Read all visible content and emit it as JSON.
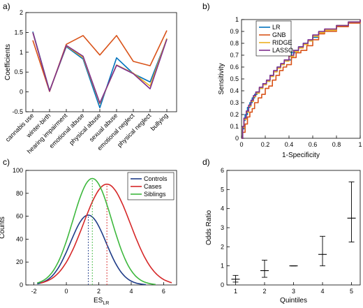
{
  "panel_labels": [
    "a)",
    "b)",
    "c)",
    "d)"
  ],
  "chart_data": [
    {
      "type": "line",
      "panel": "a)",
      "ylabel": "Coefficients",
      "xlabel": "",
      "categories": [
        "cannabis use",
        "winter-birth",
        "hearing impairment",
        "emotional abuse",
        "physical abuse",
        "sexual abuse",
        "emotional neglect",
        "physical neglect",
        "bullying"
      ],
      "ylim": [
        -0.5,
        2
      ],
      "yticks": [
        -0.5,
        0,
        0.5,
        1,
        1.5,
        2
      ],
      "legend_position": "none",
      "series": [
        {
          "name": "",
          "color": "#0072BD",
          "values": [
            1.52,
            0.03,
            1.14,
            0.83,
            -0.4,
            0.86,
            0.46,
            0.25,
            1.33
          ]
        },
        {
          "name": "",
          "color": "#D95319",
          "values": [
            1.3,
            0.01,
            1.2,
            1.42,
            0.93,
            1.42,
            0.77,
            0.66,
            1.55
          ]
        },
        {
          "name": "",
          "color": "#EDB120",
          "values": [
            1.5,
            0.02,
            1.16,
            0.87,
            -0.3,
            0.68,
            0.47,
            0.15,
            1.35
          ]
        },
        {
          "name": "",
          "color": "#7E2F8E",
          "values": [
            1.5,
            0.02,
            1.17,
            0.9,
            -0.28,
            0.67,
            0.46,
            0.08,
            1.33
          ]
        }
      ]
    },
    {
      "type": "line",
      "panel": "b)",
      "xlabel": "1-Specificity",
      "ylabel": "Sensitivity",
      "xlim": [
        0,
        1
      ],
      "ylim": [
        0,
        1
      ],
      "xticks": [
        0,
        0.2,
        0.4,
        0.6,
        0.8,
        1
      ],
      "yticks": [
        0,
        0.1,
        0.2,
        0.3,
        0.4,
        0.5,
        0.6,
        0.7,
        0.8,
        0.9,
        1
      ],
      "legend_position": "top-left",
      "series": [
        {
          "name": "LR",
          "color": "#0072BD",
          "x": [
            0,
            0.01,
            0.02,
            0.03,
            0.05,
            0.07,
            0.09,
            0.11,
            0.13,
            0.15,
            0.18,
            0.21,
            0.24,
            0.27,
            0.3,
            0.33,
            0.36,
            0.39,
            0.42,
            0.45,
            0.48,
            0.52,
            0.56,
            0.6,
            0.65,
            0.7,
            0.8,
            0.9,
            1
          ],
          "y": [
            0,
            0.08,
            0.15,
            0.2,
            0.26,
            0.3,
            0.34,
            0.37,
            0.39,
            0.42,
            0.46,
            0.48,
            0.53,
            0.56,
            0.6,
            0.62,
            0.65,
            0.66,
            0.72,
            0.74,
            0.77,
            0.8,
            0.82,
            0.85,
            0.89,
            0.91,
            0.95,
            0.98,
            1
          ]
        },
        {
          "name": "GNB",
          "color": "#D95319",
          "x": [
            0,
            0.01,
            0.03,
            0.05,
            0.07,
            0.09,
            0.11,
            0.14,
            0.17,
            0.2,
            0.23,
            0.26,
            0.29,
            0.32,
            0.35,
            0.38,
            0.42,
            0.46,
            0.5,
            0.55,
            0.6,
            0.65,
            0.7,
            0.8,
            0.9,
            1
          ],
          "y": [
            0,
            0.05,
            0.12,
            0.18,
            0.22,
            0.25,
            0.3,
            0.34,
            0.37,
            0.42,
            0.44,
            0.49,
            0.53,
            0.57,
            0.6,
            0.62,
            0.68,
            0.72,
            0.74,
            0.78,
            0.83,
            0.88,
            0.9,
            0.94,
            0.97,
            1
          ]
        },
        {
          "name": "RIDGE",
          "color": "#EDB120",
          "x": [
            0,
            0.01,
            0.02,
            0.04,
            0.06,
            0.08,
            0.1,
            0.12,
            0.15,
            0.18,
            0.21,
            0.24,
            0.27,
            0.3,
            0.33,
            0.36,
            0.4,
            0.44,
            0.48,
            0.52,
            0.56,
            0.6,
            0.65,
            0.7,
            0.8,
            0.9,
            1
          ],
          "y": [
            0,
            0.09,
            0.16,
            0.22,
            0.27,
            0.31,
            0.35,
            0.38,
            0.42,
            0.45,
            0.48,
            0.52,
            0.56,
            0.59,
            0.62,
            0.65,
            0.69,
            0.73,
            0.76,
            0.79,
            0.82,
            0.86,
            0.89,
            0.91,
            0.95,
            0.98,
            1
          ]
        },
        {
          "name": "LASSO",
          "color": "#7E2F8E",
          "x": [
            0,
            0.01,
            0.02,
            0.04,
            0.06,
            0.08,
            0.1,
            0.12,
            0.15,
            0.18,
            0.21,
            0.24,
            0.27,
            0.3,
            0.33,
            0.36,
            0.4,
            0.44,
            0.48,
            0.52,
            0.56,
            0.6,
            0.65,
            0.7,
            0.8,
            0.9,
            1
          ],
          "y": [
            0,
            0.1,
            0.17,
            0.23,
            0.28,
            0.32,
            0.36,
            0.39,
            0.43,
            0.46,
            0.49,
            0.53,
            0.57,
            0.6,
            0.63,
            0.66,
            0.7,
            0.74,
            0.77,
            0.8,
            0.83,
            0.87,
            0.9,
            0.92,
            0.95,
            0.98,
            1
          ]
        }
      ]
    },
    {
      "type": "line",
      "panel": "c)",
      "xlabel": "ES",
      "xlabel_sub": "LR",
      "ylabel": "Counts",
      "xlim": [
        -2.5,
        6.8
      ],
      "ylim": [
        0,
        100
      ],
      "xticks": [
        -2,
        0,
        2,
        4,
        6
      ],
      "yticks": [
        0,
        20,
        40,
        60,
        80,
        100
      ],
      "legend_position": "top-right",
      "series": [
        {
          "name": "Controls",
          "color": "#1F3C88",
          "peak_x": 1.35,
          "peak_y": 61,
          "sd": 1.1,
          "x_from": -1.8,
          "x_to": 4.9
        },
        {
          "name": "Cases",
          "color": "#D62728",
          "peak_x": 2.5,
          "peak_y": 88,
          "sd": 1.45,
          "x_from": -1.6,
          "x_to": 6.5
        },
        {
          "name": "Siblings",
          "color": "#3DB83D",
          "peak_x": 1.6,
          "peak_y": 93,
          "sd": 1.2,
          "x_from": -1.8,
          "x_to": 5.5
        }
      ]
    },
    {
      "type": "scatter",
      "panel": "d)",
      "xlabel": "Quintiles",
      "ylabel": "Odds Ratio",
      "xlim": [
        0.7,
        5.3
      ],
      "ylim": [
        0,
        6
      ],
      "xticks": [
        1,
        2,
        3,
        4,
        5
      ],
      "yticks": [
        0,
        1,
        2,
        3,
        4,
        5,
        6
      ],
      "legend_position": "none",
      "series": [
        {
          "name": "",
          "color": "#000000",
          "x": [
            1,
            2,
            3,
            4,
            5
          ],
          "y": [
            0.3,
            0.75,
            1.0,
            1.6,
            3.5
          ],
          "lower": [
            0.15,
            0.4,
            1.0,
            1.0,
            2.25
          ],
          "upper": [
            0.5,
            1.3,
            1.0,
            2.55,
            5.4
          ]
        }
      ]
    }
  ]
}
